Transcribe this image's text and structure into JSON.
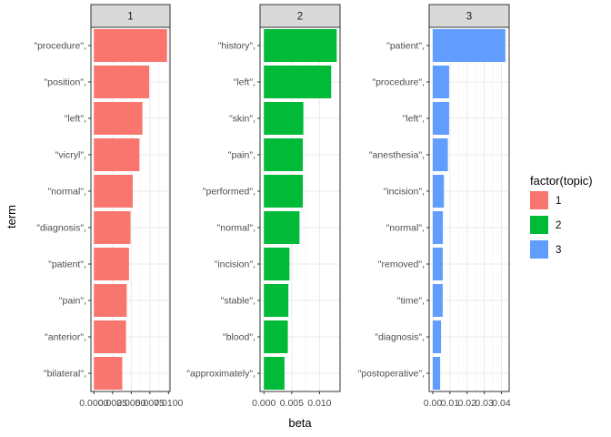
{
  "chart_data": {
    "type": "bar",
    "orientation": "horizontal",
    "faceted": true,
    "xlabel": "beta",
    "ylabel": "term",
    "grid": true,
    "legend": {
      "title": "factor(topic)",
      "placement": "right",
      "entries": [
        {
          "label": "1",
          "color": "#F8766D"
        },
        {
          "label": "2",
          "color": "#00BA38"
        },
        {
          "label": "3",
          "color": "#619CFF"
        }
      ]
    },
    "facets": [
      {
        "strip": "1",
        "color": "#F8766D",
        "xlim": [
          -0.0004,
          0.0102
        ],
        "xticks": [
          0.0,
          0.0025,
          0.005,
          0.0075,
          0.01
        ],
        "xtick_labels": [
          "0.0000",
          "0.0025",
          "0.0050",
          "0.0075",
          "0.0100"
        ],
        "categories": [
          "\"procedure\",",
          "\"position\",",
          "\"left\",",
          "\"vicryl\",",
          "\"normal\",",
          "\"diagnosis\",",
          "\"patient\",",
          "\"pain\",",
          "\"anterior\",",
          "\"bilateral\","
        ],
        "values": [
          0.0098,
          0.0074,
          0.0065,
          0.0061,
          0.0052,
          0.0049,
          0.0047,
          0.0044,
          0.0043,
          0.0038
        ]
      },
      {
        "strip": "2",
        "color": "#00BA38",
        "xlim": [
          -0.0007,
          0.0137
        ],
        "xticks": [
          0.0,
          0.005,
          0.01
        ],
        "xtick_labels": [
          "0.000",
          "0.005",
          "0.010"
        ],
        "categories": [
          "\"history\",",
          "\"left\",",
          "\"skin\",",
          "\"pain\",",
          "\"performed\",",
          "\"normal\",",
          "\"incision\",",
          "\"stable\",",
          "\"blood\",",
          "\"approximately\","
        ],
        "values": [
          0.0131,
          0.0121,
          0.0071,
          0.007,
          0.007,
          0.0064,
          0.0046,
          0.0044,
          0.0043,
          0.0037
        ]
      },
      {
        "strip": "3",
        "color": "#619CFF",
        "xlim": [
          -0.0021,
          0.0445
        ],
        "xticks": [
          0.0,
          0.01,
          0.02,
          0.03,
          0.04
        ],
        "xtick_labels": [
          "0.00",
          "0.01",
          "0.02",
          "0.03",
          "0.04"
        ],
        "categories": [
          "\"patient\",",
          "\"procedure\",",
          "\"left\",",
          "\"anesthesia\",",
          "\"incision\",",
          "\"normal\",",
          "\"removed\",",
          "\"time\",",
          "\"diagnosis\",",
          "\"postoperative\","
        ],
        "values": [
          0.0423,
          0.0095,
          0.0095,
          0.0088,
          0.0065,
          0.0059,
          0.0058,
          0.0058,
          0.0048,
          0.0043
        ]
      }
    ]
  }
}
